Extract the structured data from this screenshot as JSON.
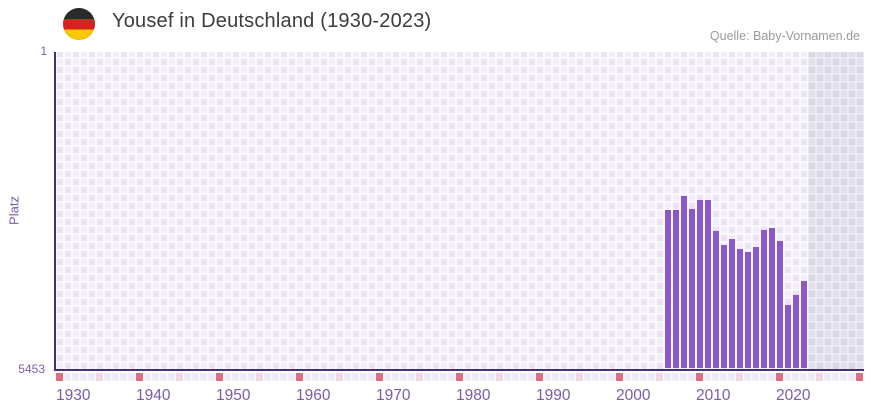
{
  "header": {
    "title": "Yousef in Deutschland (1930-2023)",
    "source": "Quelle: Baby-Vornamen.de",
    "flag_icon": "german-flag-icon"
  },
  "chart_data": {
    "type": "bar",
    "title": "Yousef in Deutschland (1930-2023)",
    "source": "Quelle: Baby-Vornamen.de",
    "ylabel": "Platz",
    "y_axis_inverted": true,
    "ylim": [
      1,
      5453
    ],
    "yticks": [
      "1",
      "5453"
    ],
    "xlim": [
      1930,
      2031
    ],
    "xticks": [
      "1930",
      "1940",
      "1950",
      "1960",
      "1970",
      "1980",
      "1990",
      "2000",
      "2010",
      "2020"
    ],
    "data_end_year": 2023,
    "grid": true,
    "legend": false,
    "bar_color": "#8c57c7",
    "series": [
      {
        "name": "Platz",
        "points": [
          {
            "year": 2006,
            "rank": 2730
          },
          {
            "year": 2007,
            "rank": 2730
          },
          {
            "year": 2008,
            "rank": 2490
          },
          {
            "year": 2009,
            "rank": 2700
          },
          {
            "year": 2010,
            "rank": 2545
          },
          {
            "year": 2011,
            "rank": 2545
          },
          {
            "year": 2012,
            "rank": 3090
          },
          {
            "year": 2013,
            "rank": 3330
          },
          {
            "year": 2014,
            "rank": 3215
          },
          {
            "year": 2015,
            "rank": 3400
          },
          {
            "year": 2016,
            "rank": 3440
          },
          {
            "year": 2017,
            "rank": 3365
          },
          {
            "year": 2018,
            "rank": 3060
          },
          {
            "year": 2019,
            "rank": 3040
          },
          {
            "year": 2020,
            "rank": 3250
          },
          {
            "year": 2021,
            "rank": 4360
          },
          {
            "year": 2022,
            "rank": 4185
          },
          {
            "year": 2023,
            "rank": 3945
          }
        ]
      }
    ],
    "axis_strip": {
      "year_start": 1930,
      "year_end": 2030,
      "decade_color": "#e0707e",
      "half_decade_color": "#f2d8de",
      "base_color": "#efebf7"
    },
    "colors": {
      "plot_cell_light": "#f2eefa",
      "plot_cell_dark": "#e9e3f4",
      "axis_line": "#453077",
      "tick_label": "#7b5cab",
      "future_region_overlay": "rgba(103,98,128,0.11)"
    }
  }
}
